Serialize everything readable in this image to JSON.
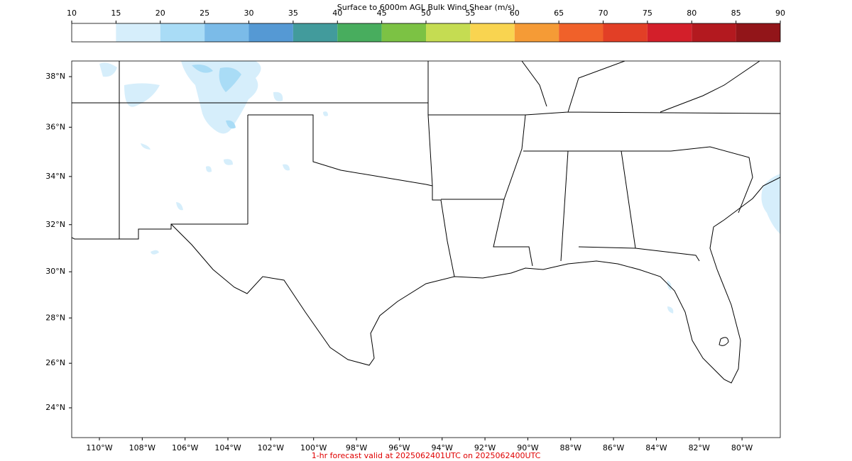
{
  "colorbar": {
    "title": "Surface to 6000m AGL Bulk Wind Shear (m/s)",
    "ticks": [
      10,
      15,
      20,
      25,
      30,
      35,
      40,
      45,
      50,
      55,
      60,
      65,
      70,
      75,
      80,
      85,
      90
    ],
    "colors": [
      "#ffffff",
      "#d6eefb",
      "#a9dcf6",
      "#7bbbe8",
      "#5599d4",
      "#429b9c",
      "#48ad5e",
      "#7cc244",
      "#c5dc52",
      "#f9d450",
      "#f59b36",
      "#f0612a",
      "#e23f26",
      "#d31f2a",
      "#b3191f",
      "#921519"
    ]
  },
  "map": {
    "latitude_labels": [
      {
        "value": 38,
        "label": "38°N"
      },
      {
        "value": 36,
        "label": "36°N"
      },
      {
        "value": 34,
        "label": "34°N"
      },
      {
        "value": 32,
        "label": "32°N"
      },
      {
        "value": 30,
        "label": "30°N"
      },
      {
        "value": 28,
        "label": "28°N"
      },
      {
        "value": 26,
        "label": "26°N"
      },
      {
        "value": 24,
        "label": "24°N"
      }
    ],
    "longitude_labels": [
      {
        "value": -110,
        "label": "110°W"
      },
      {
        "value": -108,
        "label": "108°W"
      },
      {
        "value": -106,
        "label": "106°W"
      },
      {
        "value": -104,
        "label": "104°W"
      },
      {
        "value": -102,
        "label": "102°W"
      },
      {
        "value": -100,
        "label": "100°W"
      },
      {
        "value": -98,
        "label": "98°W"
      },
      {
        "value": -96,
        "label": "96°W"
      },
      {
        "value": -94,
        "label": "94°W"
      },
      {
        "value": -92,
        "label": "92°W"
      },
      {
        "value": -90,
        "label": "90°W"
      },
      {
        "value": -88,
        "label": "88°W"
      },
      {
        "value": -86,
        "label": "86°W"
      },
      {
        "value": -84,
        "label": "84°W"
      },
      {
        "value": -82,
        "label": "82°W"
      },
      {
        "value": -80,
        "label": "80°W"
      }
    ]
  },
  "footer": "1-hr forecast valid at 2025062401UTC on 2025062400UTC"
}
